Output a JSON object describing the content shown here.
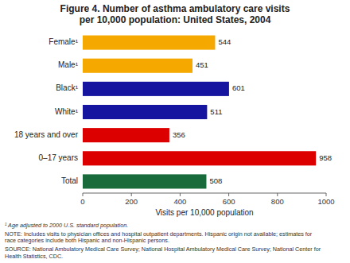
{
  "chart_data": {
    "type": "bar",
    "orientation": "horizontal",
    "title": "Figure 4. Number of asthma ambulatory care visits\nper 10,000 population: United States, 2004",
    "categories": [
      "Female¹",
      "Male¹",
      "Black¹",
      "White¹",
      "18 years and over",
      "0–17 years",
      "Total"
    ],
    "values": [
      544,
      451,
      601,
      511,
      356,
      958,
      508
    ],
    "colors": [
      "#F5A800",
      "#F5A800",
      "#1515A0",
      "#1515A0",
      "#DD0000",
      "#DD0000",
      "#1A6B3C"
    ],
    "xlabel": "Visits per 10,000 population",
    "xlim": [
      0,
      1000
    ],
    "xticks": [
      0,
      200,
      400,
      600,
      800,
      1000
    ],
    "data_labels": true,
    "grid": false,
    "annotations": [
      "¹ Age adjusted to 2000 U.S. standard population.",
      "NOTE: Includes visits to physician offices and hospital outpatient departments. Hispanic origin not available; estimates for\nrace categories include both Hispanic and non-Hispanic persons.",
      "SOURCE: National Ambulatory Medical Care Survey; National Hospital Ambulatory Medical Care Survey; National Center for\nHealth Statistics, CDC."
    ]
  }
}
